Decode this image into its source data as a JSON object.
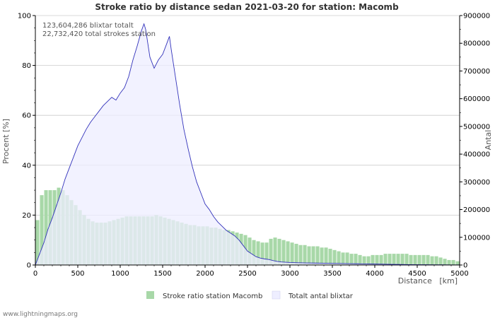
{
  "chart_data": {
    "type": "area",
    "title": "Stroke ratio by distance sedan 2021-03-20 for station: Macomb",
    "xlabel": "Distance   [km]",
    "ylabel_left": "Procent   [%]",
    "ylabel_right": "Antal",
    "xlim": [
      0,
      5000
    ],
    "ylim_left": [
      0,
      100
    ],
    "ylim_right": [
      0,
      900000
    ],
    "x_ticks": [
      "0",
      "500",
      "1000",
      "1500",
      "2000",
      "2500",
      "3000",
      "3500",
      "4000",
      "4500",
      "5000"
    ],
    "y_left_ticks": [
      "0",
      "20",
      "40",
      "60",
      "80",
      "100"
    ],
    "y_right_ticks": [
      "0",
      "100000",
      "200000",
      "300000",
      "400000",
      "500000",
      "600000",
      "700000",
      "800000",
      "900000"
    ],
    "annotations": [
      "123,604,286 blixtar totalt",
      "22,732,420 total strokes station"
    ],
    "series": [
      {
        "name": "Stroke ratio station Macomb",
        "kind": "bar",
        "axis": "left",
        "color": "#a8d8a8",
        "x": [
          0,
          50,
          100,
          150,
          200,
          250,
          300,
          350,
          400,
          450,
          500,
          550,
          600,
          650,
          700,
          750,
          800,
          850,
          900,
          950,
          1000,
          1050,
          1100,
          1150,
          1200,
          1250,
          1300,
          1350,
          1400,
          1450,
          1500,
          1550,
          1600,
          1650,
          1700,
          1750,
          1800,
          1850,
          1900,
          1950,
          2000,
          2050,
          2100,
          2150,
          2200,
          2250,
          2300,
          2350,
          2400,
          2450,
          2500,
          2550,
          2600,
          2650,
          2700,
          2750,
          2800,
          2850,
          2900,
          2950,
          3000,
          3050,
          3100,
          3150,
          3200,
          3250,
          3300,
          3350,
          3400,
          3450,
          3500,
          3550,
          3600,
          3650,
          3700,
          3750,
          3800,
          3850,
          3900,
          3950,
          4000,
          4050,
          4100,
          4150,
          4200,
          4250,
          4300,
          4350,
          4400,
          4450,
          4500,
          4550,
          4600,
          4650,
          4700,
          4750,
          4800,
          4850,
          4900,
          4950
        ],
        "values": [
          18,
          28,
          30,
          30,
          30,
          31,
          30,
          28,
          26,
          24,
          22,
          20,
          18.5,
          17.5,
          17,
          17,
          17,
          17.5,
          18,
          18.5,
          19,
          19.5,
          19.5,
          19.5,
          19.5,
          19.5,
          19.5,
          19.5,
          20,
          19.5,
          19,
          18.5,
          18,
          17.5,
          17,
          16.5,
          16,
          16,
          15.5,
          15.5,
          15.5,
          15,
          15,
          14.5,
          14,
          14,
          13.5,
          13,
          12.5,
          12,
          11,
          10,
          9.5,
          9,
          9,
          10.5,
          11,
          10.5,
          10,
          9.5,
          9,
          8.5,
          8,
          8,
          7.5,
          7.5,
          7.5,
          7,
          7,
          6.5,
          6,
          5.5,
          5,
          5,
          4.5,
          4.5,
          4,
          3.5,
          3.5,
          4,
          4,
          4,
          4.5,
          4.5,
          4.5,
          4.5,
          4.5,
          4.5,
          4,
          4,
          4,
          4,
          4,
          3.5,
          3.5,
          3,
          2.5,
          2,
          2,
          1.5
        ]
      },
      {
        "name": "Totalt antal blixtar",
        "kind": "area",
        "axis": "right",
        "color": "#eeeeff",
        "line_color": "#3333bb",
        "x": [
          0,
          50,
          100,
          150,
          200,
          250,
          300,
          350,
          400,
          450,
          500,
          550,
          600,
          650,
          700,
          750,
          800,
          850,
          900,
          950,
          1000,
          1050,
          1100,
          1150,
          1200,
          1250,
          1280,
          1300,
          1350,
          1400,
          1450,
          1500,
          1550,
          1580,
          1600,
          1650,
          1700,
          1750,
          1800,
          1850,
          1900,
          1950,
          2000,
          2050,
          2100,
          2150,
          2200,
          2250,
          2300,
          2350,
          2400,
          2450,
          2500,
          2550,
          2600,
          2650,
          2700,
          2750,
          2800,
          2850,
          2900,
          2950,
          3000,
          3100,
          3200,
          3300,
          3400,
          3500,
          3600,
          3700,
          3800,
          3900,
          4000,
          4100,
          4200,
          4300,
          4400,
          4500,
          4600,
          4700,
          4800,
          4900,
          5000
        ],
        "values": [
          0,
          40000,
          80000,
          130000,
          170000,
          215000,
          260000,
          310000,
          350000,
          390000,
          430000,
          460000,
          490000,
          515000,
          535000,
          555000,
          575000,
          590000,
          605000,
          595000,
          620000,
          640000,
          680000,
          740000,
          790000,
          845000,
          870000,
          850000,
          750000,
          710000,
          740000,
          760000,
          800000,
          825000,
          780000,
          680000,
          580000,
          490000,
          420000,
          355000,
          300000,
          260000,
          220000,
          200000,
          175000,
          155000,
          140000,
          125000,
          115000,
          105000,
          90000,
          70000,
          50000,
          40000,
          30000,
          25000,
          22000,
          20000,
          16000,
          13000,
          11000,
          10000,
          9000,
          8000,
          7500,
          7000,
          6500,
          6000,
          5500,
          5000,
          4500,
          4000,
          3500,
          3000,
          2500,
          2000,
          1500,
          1200,
          1000,
          800,
          600,
          500,
          400
        ]
      }
    ],
    "legend": [
      "Stroke ratio station Macomb",
      "Totalt antal blixtar"
    ],
    "legend_position": "bottom-center",
    "grid": true
  },
  "credit": "www.lightningmaps.org"
}
